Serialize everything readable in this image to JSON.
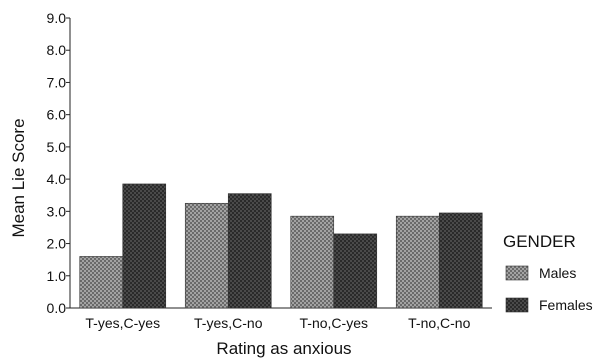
{
  "chart_data": {
    "type": "bar",
    "title": "",
    "xlabel": "Rating as anxious",
    "ylabel": "Mean Lie Score",
    "ylim": [
      0,
      9
    ],
    "yticks": [
      "0.0",
      "1.0",
      "2.0",
      "3.0",
      "4.0",
      "5.0",
      "6.0",
      "7.0",
      "8.0",
      "9.0"
    ],
    "categories": [
      "T-yes,C-yes",
      "T-yes,C-no",
      "T-no,C-yes",
      "T-no,C-no"
    ],
    "series": [
      {
        "name": "Males",
        "values": [
          1.6,
          3.25,
          2.85,
          2.85
        ],
        "color": "#8a8a8a",
        "pattern": "light-crosshatch"
      },
      {
        "name": "Females",
        "values": [
          3.85,
          3.55,
          2.3,
          2.95
        ],
        "color": "#3c3c3c",
        "pattern": "dark-crosshatch"
      }
    ],
    "legend": {
      "title": "GENDER",
      "position": "right"
    },
    "grid": false
  }
}
